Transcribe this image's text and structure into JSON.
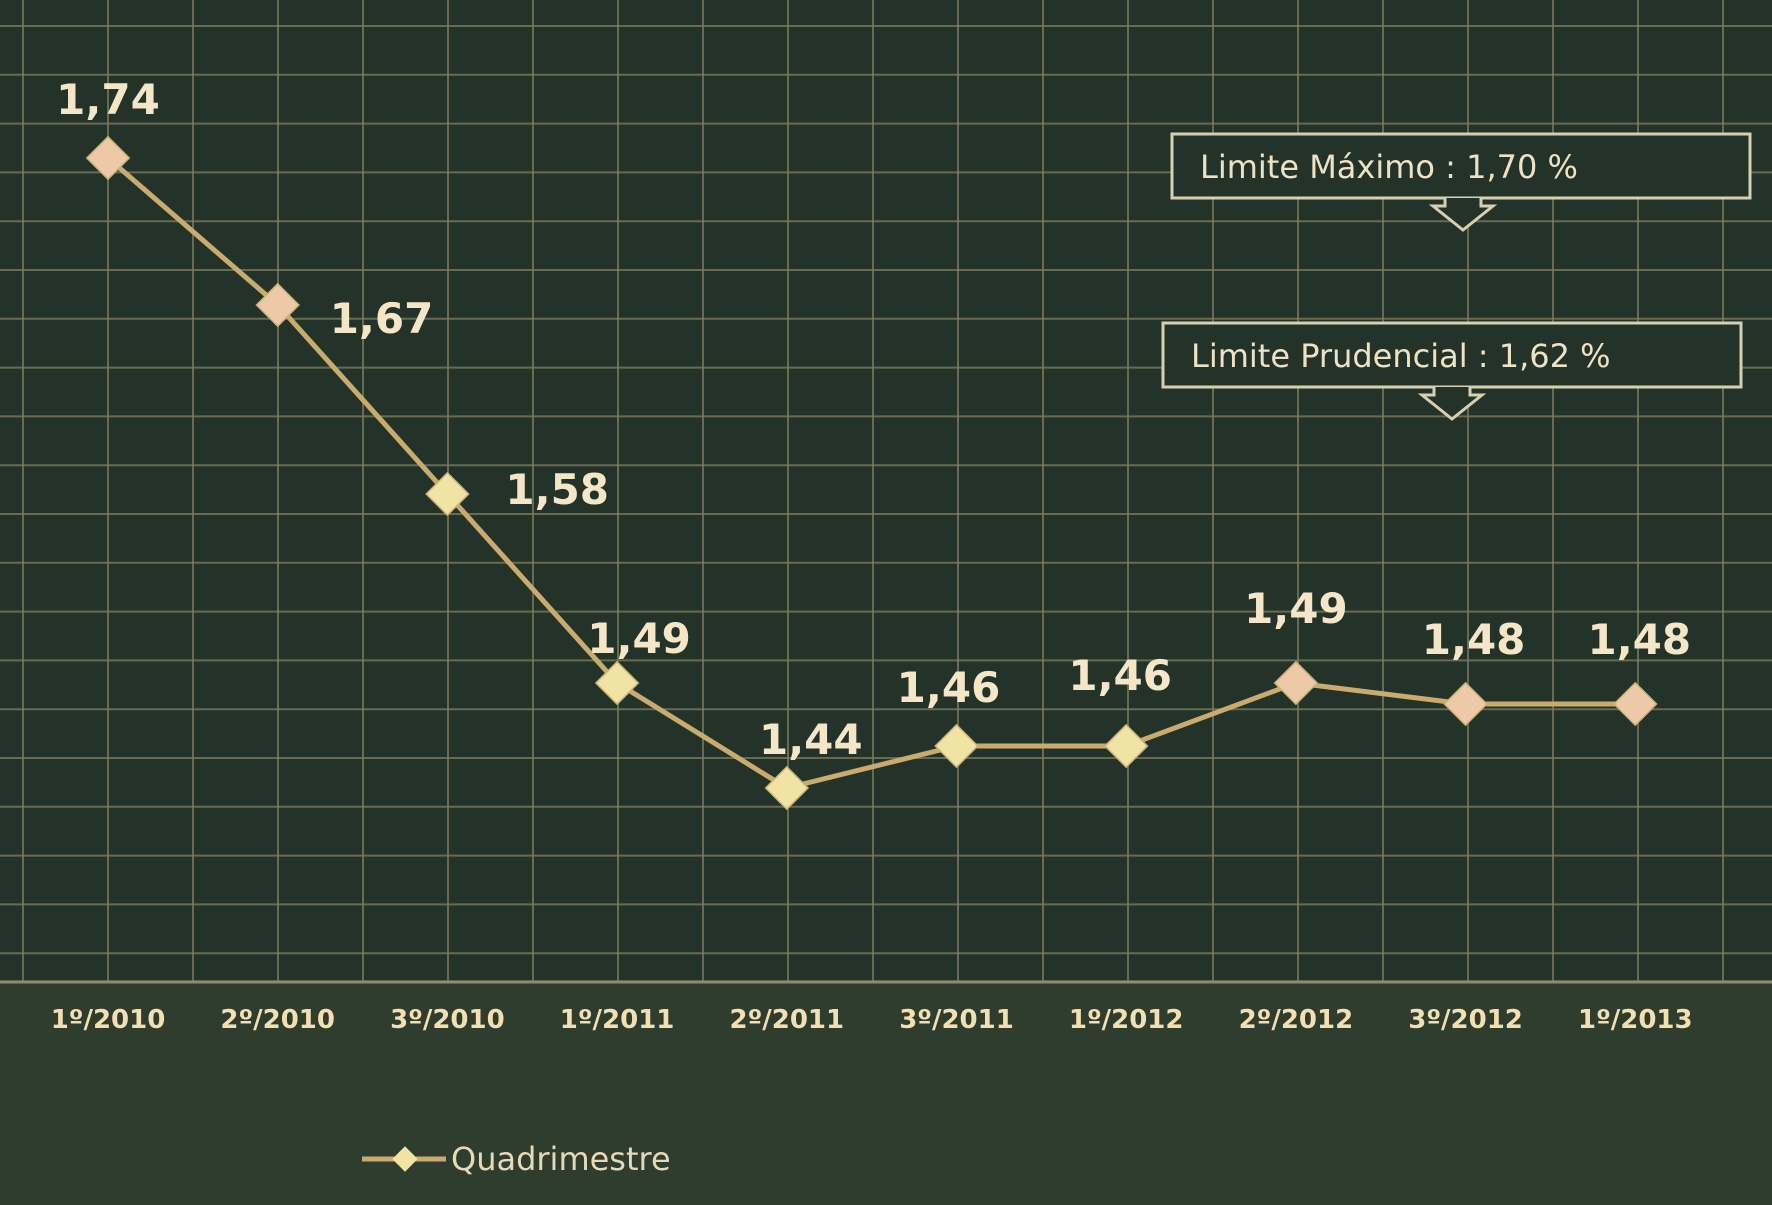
{
  "chart_data": {
    "type": "line",
    "categories": [
      "1º/2010",
      "2º/2010",
      "3º/2010",
      "1º/2011",
      "2º/2011",
      "3º/2011",
      "1º/2012",
      "2º/2012",
      "3º/2012",
      "1º/2013"
    ],
    "series": [
      {
        "name": "Quadrimestre",
        "values": [
          1.74,
          1.67,
          1.58,
          1.49,
          1.44,
          1.46,
          1.46,
          1.49,
          1.48,
          1.48
        ],
        "labels": [
          "1,74",
          "1,67",
          "1,58",
          "1,49",
          "1,44",
          "1,46",
          "1,46",
          "1,49",
          "1,48",
          "1,48"
        ]
      }
    ],
    "reference_lines": [
      {
        "value": 1.7,
        "label": "Limite Máximo  :  1,70 %"
      },
      {
        "value": 1.62,
        "label": "Limite Prudencial  :  1,62 %"
      }
    ],
    "ylim": [
      1.4,
      1.78
    ],
    "grid": true,
    "legend_position": "bottom-left",
    "colors": {
      "background": "#2e3d2e",
      "plot_background": "#24332a",
      "grid": "#7e7f5e",
      "line": "#c9ab6e",
      "marker_light": "#f0e3a4",
      "marker_pink": "#edc9a8",
      "limit_line_start": "#f2c9b0",
      "limit_line_mid": "#f2ec9a",
      "label_text": "#f4e6c6",
      "tick_text": "#f3dfb0"
    }
  }
}
